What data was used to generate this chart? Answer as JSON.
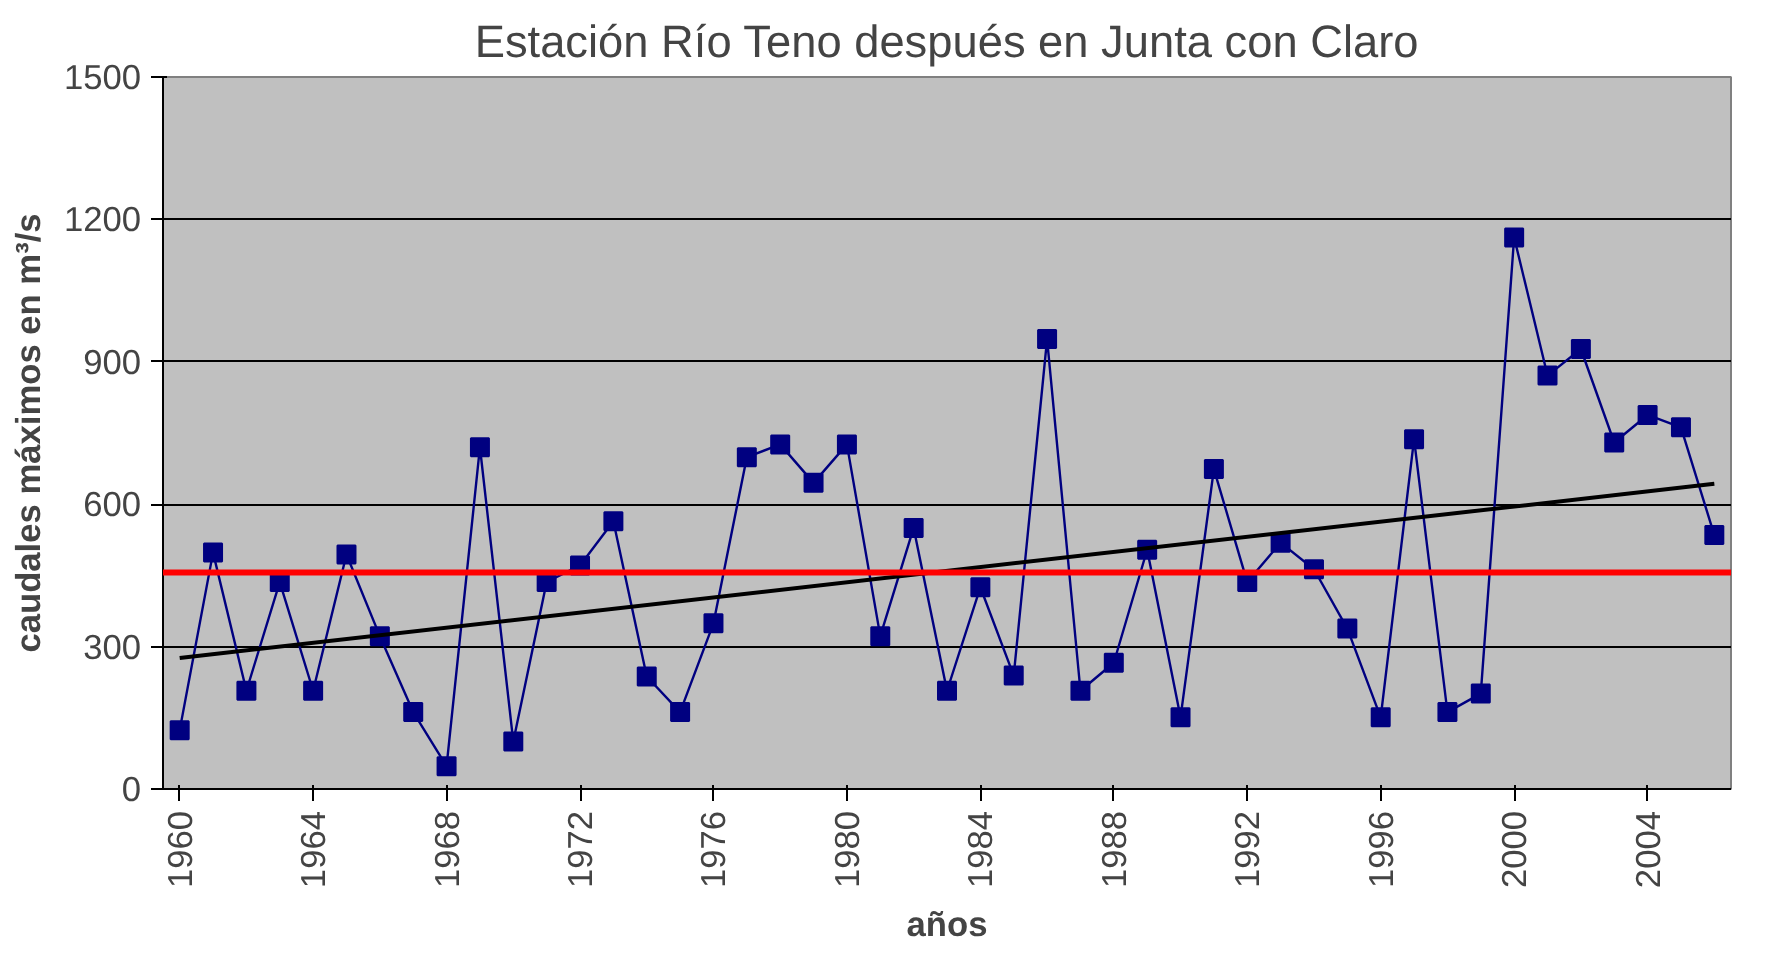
{
  "chart_data": {
    "type": "line",
    "title": "Estación Río Teno después en Junta con Claro",
    "xlabel": "años",
    "ylabel": "caudales máximos en m³/s",
    "x": [
      1960,
      1961,
      1962,
      1963,
      1964,
      1965,
      1966,
      1967,
      1968,
      1969,
      1970,
      1971,
      1972,
      1973,
      1974,
      1975,
      1976,
      1977,
      1978,
      1979,
      1980,
      1981,
      1982,
      1983,
      1984,
      1985,
      1986,
      1987,
      1988,
      1989,
      1990,
      1991,
      1992,
      1993,
      1994,
      1995,
      1996,
      1997,
      1998,
      1999,
      2000,
      2001,
      2002,
      2003,
      2004,
      2005,
      2006
    ],
    "series": [
      {
        "color": "#000080",
        "marker": "square",
        "values": [
          124,
          498,
          207,
          436,
          207,
          494,
          322,
          162,
          48,
          720,
          100,
          436,
          471,
          564,
          237,
          162,
          349,
          699,
          726,
          645,
          726,
          322,
          550,
          207,
          425,
          239,
          948,
          207,
          266,
          504,
          151,
          674,
          436,
          519,
          463,
          338,
          151,
          737,
          162,
          201,
          1162,
          871,
          927,
          730,
          788,
          762,
          535
        ]
      },
      {
        "type": "line",
        "color": "#000000",
        "marker": "none",
        "x": [
          1960,
          2006
        ],
        "values": [
          276,
          643
        ]
      }
    ],
    "ref_lines": [
      {
        "axis": "y",
        "value": 456,
        "color": "#ff0000"
      }
    ],
    "xlim": [
      1959.5,
      2006.5
    ],
    "xticks": [
      1960,
      1964,
      1968,
      1972,
      1976,
      1980,
      1984,
      1988,
      1992,
      1996,
      2000,
      2004
    ],
    "ylim": [
      0,
      1500
    ],
    "yticks": [
      0,
      300,
      600,
      900,
      1200,
      1500
    ],
    "grid": "y"
  }
}
